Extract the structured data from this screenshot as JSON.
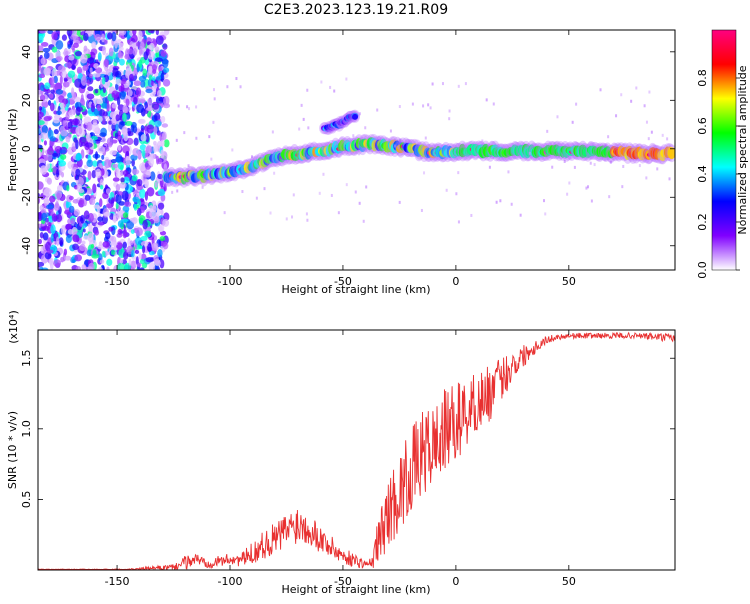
{
  "title": "C2E3.2023.123.19.21.R09",
  "chart_data": [
    {
      "type": "heatmap",
      "name": "spectrogram",
      "xlabel": "Height of straight line (km)",
      "ylabel": "Frequency (Hz)",
      "xlim": [
        -185,
        97
      ],
      "ylim": [
        -50,
        49
      ],
      "x_ticks": [
        -150,
        -100,
        -50,
        0,
        50
      ],
      "y_ticks": [
        -40,
        -20,
        0,
        20,
        40
      ],
      "colorbar": {
        "label": "Normalized spectral amplitude",
        "range": [
          0,
          1
        ],
        "ticks": [
          0.0,
          0.2,
          0.4,
          0.6,
          0.8
        ],
        "colors": [
          "#ffffff",
          "#8000ff",
          "#0000ff",
          "#00ffff",
          "#00ff00",
          "#ffff00",
          "#ff0000",
          "#ff0080"
        ]
      },
      "features": [
        {
          "kind": "noise_region",
          "x_range": [
            -185,
            -128
          ],
          "y_range": [
            -50,
            49
          ],
          "amplitude": 0.15
        },
        {
          "kind": "ridge",
          "points": [
            [
              -128,
              -12
            ],
            [
              -110,
              -11
            ],
            [
              -100,
              -10
            ],
            [
              -90,
              -7
            ],
            [
              -80,
              -4
            ],
            [
              -70,
              -2
            ],
            [
              -60,
              -1
            ],
            [
              -50,
              1
            ],
            [
              -40,
              2
            ],
            [
              -30,
              1
            ],
            [
              -20,
              0
            ],
            [
              -10,
              -2
            ],
            [
              0,
              -1
            ],
            [
              20,
              -1
            ],
            [
              40,
              -1
            ],
            [
              60,
              -1
            ],
            [
              80,
              -2
            ],
            [
              96,
              -2
            ]
          ],
          "amplitude": 0.55
        },
        {
          "kind": "branch",
          "points": [
            [
              -58,
              8
            ],
            [
              -50,
              11
            ],
            [
              -44,
              14
            ]
          ],
          "amplitude": 0.3
        }
      ]
    },
    {
      "type": "line",
      "name": "snr",
      "xlabel": "Height of straight line (km)",
      "ylabel": "SNR (10 * v/v)",
      "y_multiplier": "(x10⁴)",
      "xlim": [
        -185,
        97
      ],
      "ylim": [
        0,
        1.7
      ],
      "x_ticks": [
        -150,
        -100,
        -50,
        0,
        50
      ],
      "y_ticks": [
        0.5,
        1.0,
        1.5
      ],
      "color": "#e83030",
      "series": [
        {
          "x": [
            -185,
            -150,
            -125,
            -120,
            -115,
            -110,
            -105,
            -100,
            -95,
            -90,
            -85,
            -80,
            -75,
            -70,
            -65,
            -60,
            -55,
            -50,
            -45,
            -40,
            -37,
            -35,
            -30,
            -25,
            -20,
            -15,
            -10,
            -5,
            0,
            5,
            10,
            15,
            20,
            25,
            30,
            35,
            40,
            45,
            50,
            60,
            70,
            80,
            90,
            97
          ],
          "values": [
            0.0,
            0.0,
            0.02,
            0.05,
            0.08,
            0.05,
            0.06,
            0.08,
            0.07,
            0.12,
            0.18,
            0.22,
            0.28,
            0.33,
            0.3,
            0.22,
            0.16,
            0.1,
            0.07,
            0.04,
            0.05,
            0.18,
            0.4,
            0.55,
            0.7,
            0.82,
            0.88,
            0.98,
            1.05,
            1.12,
            1.2,
            1.25,
            1.35,
            1.45,
            1.52,
            1.58,
            1.63,
            1.65,
            1.66,
            1.66,
            1.66,
            1.66,
            1.65,
            1.64
          ],
          "noise": [
            0.0,
            0.0,
            0.02,
            0.05,
            0.04,
            0.04,
            0.04,
            0.04,
            0.05,
            0.08,
            0.1,
            0.12,
            0.13,
            0.14,
            0.12,
            0.1,
            0.08,
            0.06,
            0.05,
            0.03,
            0.04,
            0.15,
            0.25,
            0.28,
            0.3,
            0.3,
            0.3,
            0.3,
            0.28,
            0.25,
            0.22,
            0.2,
            0.16,
            0.12,
            0.08,
            0.05,
            0.03,
            0.02,
            0.02,
            0.02,
            0.02,
            0.02,
            0.03,
            0.03
          ]
        }
      ]
    }
  ]
}
